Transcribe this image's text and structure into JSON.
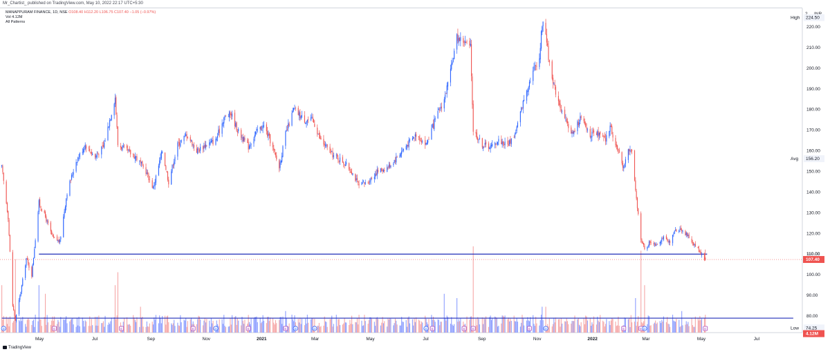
{
  "publisher_line": "Mr_Chartist_ published on TradingView.com, May 10, 2022 22:17 UTC+5:30",
  "legend": {
    "symbol": "MANAPPURAM FINANCE, 1D, NSE",
    "ohlc": "O108.40  H112.20  L106.75  C107.40  −1.05 (−0.97%)",
    "volume": "Vol  4.12M",
    "patterns": "All Patterns"
  },
  "footer": {
    "brand": "TradingView"
  },
  "colors": {
    "up": "#2962ff",
    "down": "#ef5350",
    "vol_up": "#8c9eff",
    "vol_down": "#f5a6a6",
    "hline": "#1e2bb8",
    "grid": "#f0f3fa",
    "axis_text": "#131722"
  },
  "chart_data": {
    "type": "candlestick",
    "currency_label": "INR",
    "x_ticks": [
      "May",
      "Jul",
      "Sep",
      "Nov",
      "2021",
      "Mar",
      "May",
      "Jul",
      "Sep",
      "Nov",
      "2022",
      "Mar",
      "May",
      "Jul"
    ],
    "x_ticks_bold": [
      "2021",
      "2022"
    ],
    "y_ticks": [
      80,
      90,
      100,
      110,
      120,
      130,
      140,
      150,
      160,
      170,
      180,
      190,
      200,
      210,
      220
    ],
    "y_top_label": "2",
    "y_range": [
      72,
      229
    ],
    "price_tags": [
      {
        "label": "High",
        "value": "224.50",
        "price": 224.5,
        "style": "plain"
      },
      {
        "label": "Avg",
        "value": "156.20",
        "price": 156.2,
        "style": "plain"
      },
      {
        "label": "",
        "value": "110.00",
        "price": 110.0,
        "style": "line"
      },
      {
        "label": "",
        "value": "107.40",
        "price": 107.4,
        "style": "red"
      },
      {
        "label": "Low",
        "value": "74.25",
        "price": 74.25,
        "style": "plain"
      },
      {
        "label": "",
        "value": "4.12M",
        "price": 71.5,
        "style": "redvol"
      }
    ],
    "horizontal_lines": [
      {
        "price": 110.0,
        "from": "2020-05-05",
        "to": "2022-05-12"
      },
      {
        "price": 79.0,
        "from": "2020-03-25",
        "to": "2022-08-15"
      }
    ],
    "last_close": 107.4,
    "price_path": [
      [
        "2020-03-25",
        152
      ],
      [
        "2020-04-01",
        128
      ],
      [
        "2020-04-06",
        85
      ],
      [
        "2020-04-09",
        78
      ],
      [
        "2020-04-15",
        92
      ],
      [
        "2020-04-21",
        108
      ],
      [
        "2020-04-27",
        100
      ],
      [
        "2020-05-05",
        135
      ],
      [
        "2020-05-12",
        128
      ],
      [
        "2020-05-20",
        118
      ],
      [
        "2020-05-28",
        116
      ],
      [
        "2020-06-05",
        140
      ],
      [
        "2020-06-15",
        155
      ],
      [
        "2020-06-25",
        163
      ],
      [
        "2020-07-06",
        157
      ],
      [
        "2020-07-15",
        162
      ],
      [
        "2020-07-22",
        175
      ],
      [
        "2020-07-28",
        186
      ],
      [
        "2020-07-31",
        163
      ],
      [
        "2020-08-10",
        160
      ],
      [
        "2020-08-20",
        157
      ],
      [
        "2020-08-31",
        150
      ],
      [
        "2020-09-08",
        142
      ],
      [
        "2020-09-18",
        160
      ],
      [
        "2020-09-25",
        145
      ],
      [
        "2020-10-05",
        163
      ],
      [
        "2020-10-15",
        168
      ],
      [
        "2020-10-26",
        160
      ],
      [
        "2020-11-05",
        163
      ],
      [
        "2020-11-16",
        165
      ],
      [
        "2020-11-25",
        176
      ],
      [
        "2020-12-03",
        178
      ],
      [
        "2020-12-10",
        170
      ],
      [
        "2020-12-22",
        162
      ],
      [
        "2021-01-01",
        170
      ],
      [
        "2021-01-08",
        172
      ],
      [
        "2021-01-15",
        165
      ],
      [
        "2021-01-25",
        152
      ],
      [
        "2021-02-01",
        168
      ],
      [
        "2021-02-10",
        180
      ],
      [
        "2021-02-22",
        175
      ],
      [
        "2021-03-03",
        175
      ],
      [
        "2021-03-12",
        165
      ],
      [
        "2021-03-25",
        158
      ],
      [
        "2021-04-05",
        155
      ],
      [
        "2021-04-15",
        150
      ],
      [
        "2021-04-23",
        143
      ],
      [
        "2021-05-03",
        145
      ],
      [
        "2021-05-13",
        150
      ],
      [
        "2021-05-25",
        152
      ],
      [
        "2021-06-04",
        157
      ],
      [
        "2021-06-15",
        163
      ],
      [
        "2021-06-25",
        168
      ],
      [
        "2021-07-06",
        163
      ],
      [
        "2021-07-16",
        175
      ],
      [
        "2021-07-26",
        185
      ],
      [
        "2021-08-02",
        198
      ],
      [
        "2021-08-09",
        215
      ],
      [
        "2021-08-17",
        213
      ],
      [
        "2021-08-24",
        210
      ],
      [
        "2021-08-27",
        170
      ],
      [
        "2021-09-06",
        163
      ],
      [
        "2021-09-16",
        162
      ],
      [
        "2021-09-24",
        165
      ],
      [
        "2021-10-04",
        163
      ],
      [
        "2021-10-12",
        168
      ],
      [
        "2021-10-22",
        185
      ],
      [
        "2021-10-29",
        195
      ],
      [
        "2021-11-02",
        200
      ],
      [
        "2021-11-08",
        205
      ],
      [
        "2021-11-11",
        222
      ],
      [
        "2021-11-15",
        218
      ],
      [
        "2021-11-18",
        205
      ],
      [
        "2021-11-25",
        190
      ],
      [
        "2021-12-06",
        175
      ],
      [
        "2021-12-15",
        168
      ],
      [
        "2021-12-23",
        176
      ],
      [
        "2022-01-03",
        168
      ],
      [
        "2022-01-12",
        168
      ],
      [
        "2022-01-20",
        165
      ],
      [
        "2022-01-25",
        172
      ],
      [
        "2022-02-01",
        162
      ],
      [
        "2022-02-08",
        152
      ],
      [
        "2022-02-14",
        160
      ],
      [
        "2022-02-18",
        160
      ],
      [
        "2022-02-22",
        140
      ],
      [
        "2022-02-28",
        118
      ],
      [
        "2022-03-04",
        112
      ],
      [
        "2022-03-10",
        116
      ],
      [
        "2022-03-17",
        115
      ],
      [
        "2022-03-24",
        118
      ],
      [
        "2022-04-01",
        115
      ],
      [
        "2022-04-07",
        122
      ],
      [
        "2022-04-14",
        122
      ],
      [
        "2022-04-22",
        118
      ],
      [
        "2022-04-29",
        114
      ],
      [
        "2022-05-06",
        110
      ],
      [
        "2022-05-10",
        107.4
      ]
    ],
    "volume_spikes": [
      [
        "2020-03-25",
        0.55,
        0
      ],
      [
        "2020-04-09",
        0.85,
        0
      ],
      [
        "2020-05-05",
        0.55,
        1
      ],
      [
        "2020-05-12",
        0.45,
        0
      ],
      [
        "2020-07-28",
        0.55,
        0
      ],
      [
        "2020-07-31",
        0.7,
        0
      ],
      [
        "2020-08-25",
        0.3,
        0
      ],
      [
        "2021-02-01",
        0.25,
        1
      ],
      [
        "2021-07-26",
        0.45,
        1
      ],
      [
        "2021-08-09",
        0.4,
        1
      ],
      [
        "2021-08-27",
        1.0,
        0
      ],
      [
        "2021-11-11",
        0.3,
        1
      ],
      [
        "2021-11-15",
        0.3,
        0
      ],
      [
        "2022-02-22",
        0.4,
        1
      ],
      [
        "2022-02-28",
        0.95,
        0
      ],
      [
        "2022-03-04",
        0.55,
        0
      ],
      [
        "2022-04-14",
        0.25,
        1
      ]
    ],
    "event_markers": [
      [
        "2020-03-27",
        "D"
      ],
      [
        "2020-05-22",
        "E"
      ],
      [
        "2020-08-04",
        "E"
      ],
      [
        "2020-10-22",
        "E"
      ],
      [
        "2020-11-16",
        "D"
      ],
      [
        "2020-12-22",
        "E"
      ],
      [
        "2021-02-01",
        "E"
      ],
      [
        "2021-02-12",
        "D"
      ],
      [
        "2021-03-05",
        "D"
      ],
      [
        "2021-07-06",
        "D"
      ],
      [
        "2021-07-13",
        "E"
      ],
      [
        "2021-08-17",
        "E"
      ],
      [
        "2021-08-27",
        "E"
      ],
      [
        "2021-10-28",
        "E"
      ],
      [
        "2021-11-15",
        "D"
      ],
      [
        "2022-02-09",
        "E"
      ],
      [
        "2022-02-28",
        "E"
      ],
      [
        "2022-03-04",
        "D"
      ],
      [
        "2022-05-10",
        "E"
      ]
    ]
  }
}
